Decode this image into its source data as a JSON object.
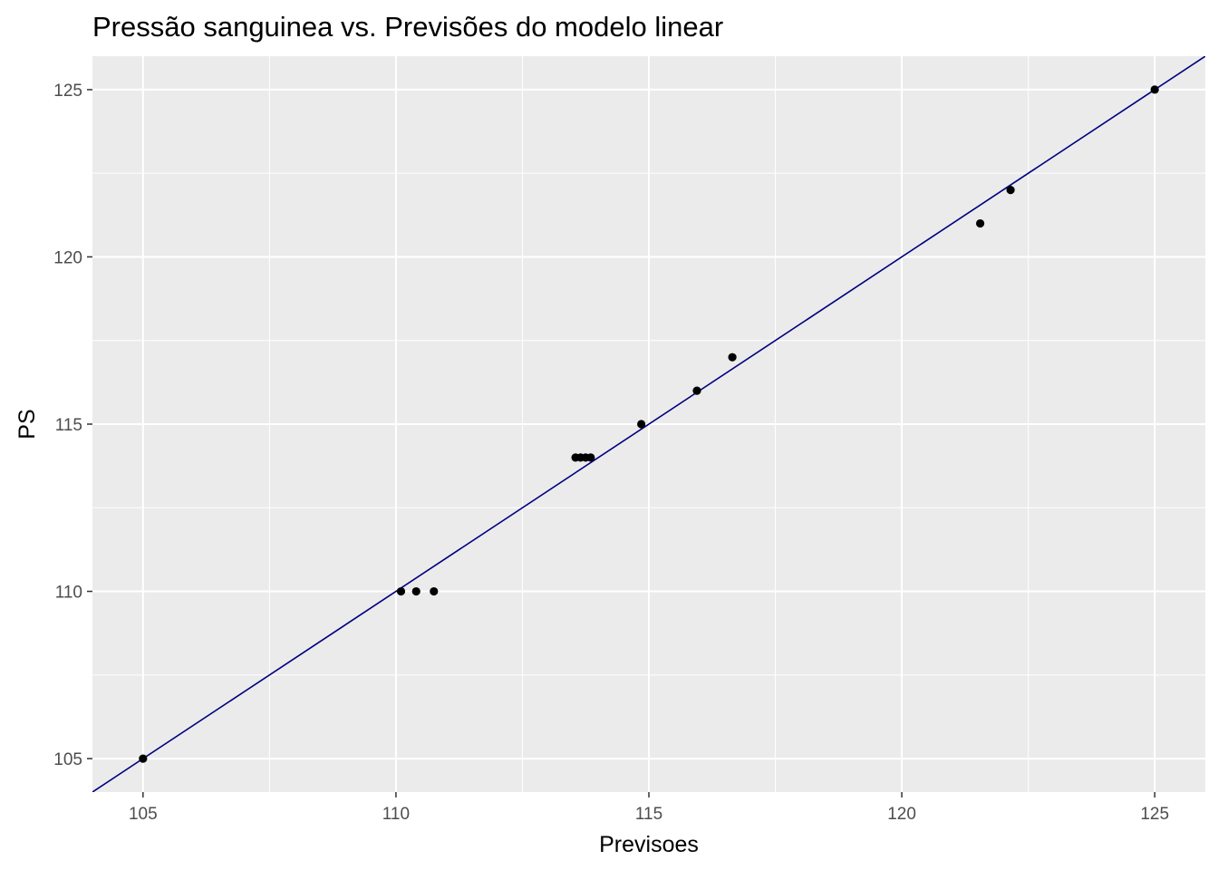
{
  "chart_data": {
    "type": "scatter",
    "title": "Pressão sanguinea vs. Previsões do modelo linear",
    "xlabel": "Previsoes",
    "ylabel": "PS",
    "xlim": [
      104,
      126
    ],
    "ylim": [
      104,
      126
    ],
    "x_ticks": [
      105,
      110,
      115,
      120,
      125
    ],
    "y_ticks": [
      105,
      110,
      115,
      120,
      125
    ],
    "x_tick_labels": [
      "105",
      "110",
      "115",
      "120",
      "125"
    ],
    "y_tick_labels": [
      "105",
      "110",
      "115",
      "120",
      "125"
    ],
    "grid": true,
    "points": [
      {
        "x": 105.0,
        "y": 105
      },
      {
        "x": 110.1,
        "y": 110
      },
      {
        "x": 110.4,
        "y": 110
      },
      {
        "x": 110.75,
        "y": 110
      },
      {
        "x": 113.55,
        "y": 114
      },
      {
        "x": 113.65,
        "y": 114
      },
      {
        "x": 113.75,
        "y": 114
      },
      {
        "x": 113.85,
        "y": 114
      },
      {
        "x": 114.85,
        "y": 115
      },
      {
        "x": 115.95,
        "y": 116
      },
      {
        "x": 116.65,
        "y": 117
      },
      {
        "x": 121.55,
        "y": 121
      },
      {
        "x": 122.15,
        "y": 122
      },
      {
        "x": 125.0,
        "y": 125
      }
    ],
    "reference_line": {
      "slope": 1,
      "intercept": 0
    },
    "colors": {
      "panel": "#ebebeb",
      "grid": "#ffffff",
      "points": "#000000",
      "line": "#000080"
    }
  }
}
